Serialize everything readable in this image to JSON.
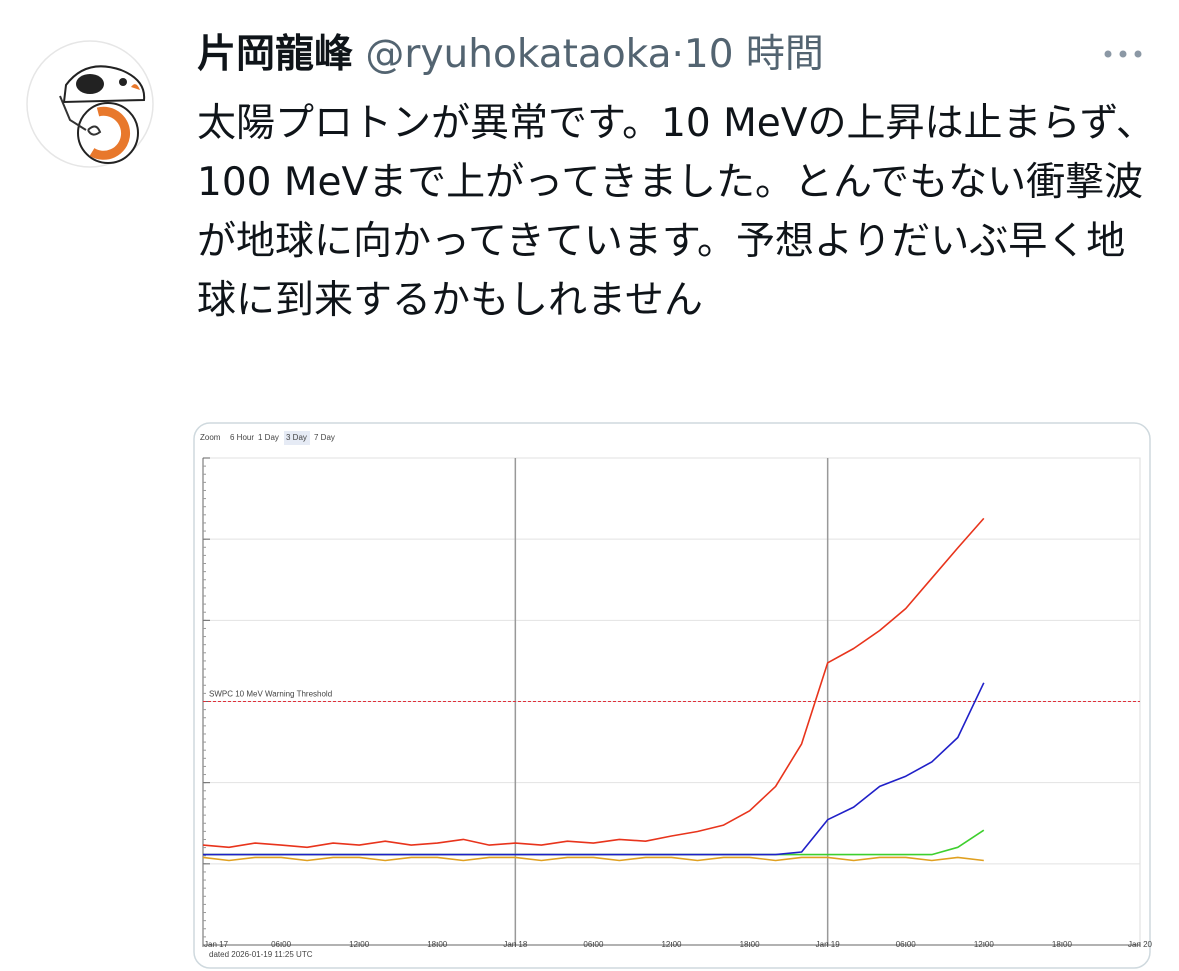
{
  "tweet": {
    "author_name": "片岡龍峰",
    "handle": "@ryuhokataoka",
    "separator": "·",
    "time": "10 時間",
    "text": "太陽プロトンが異常です。10 MeVの上昇は止まらず、100 MeVまで上がってきました。とんでもない衝撃波が地球に向かってきています。予想よりだいぶ早く地球に到来するかもしれません"
  },
  "chart_data": {
    "type": "line",
    "log_y": true,
    "zoom": {
      "label": "Zoom",
      "options": [
        "6 Hour",
        "1 Day",
        "3 Day",
        "7 Day"
      ],
      "selected": 2
    },
    "x": [
      0,
      2,
      4,
      6,
      8,
      10,
      12,
      14,
      16,
      18,
      20,
      22,
      24,
      26,
      28,
      30,
      32,
      34,
      36,
      38,
      40,
      42,
      44,
      46,
      48,
      50,
      52,
      54,
      56,
      58,
      60
    ],
    "xlim": [
      0,
      72
    ],
    "xticks": [
      {
        "value": 0,
        "label": "Jan 17"
      },
      {
        "value": 6,
        "label": "06:00"
      },
      {
        "value": 12,
        "label": "12:00"
      },
      {
        "value": 18,
        "label": "18:00"
      },
      {
        "value": 24,
        "label": "Jan 18"
      },
      {
        "value": 30,
        "label": "06:00"
      },
      {
        "value": 36,
        "label": "12:00"
      },
      {
        "value": 42,
        "label": "18:00"
      },
      {
        "value": 48,
        "label": "Jan 19"
      },
      {
        "value": 54,
        "label": "06:00"
      },
      {
        "value": 60,
        "label": "12:00"
      },
      {
        "value": 66,
        "label": "18:00"
      },
      {
        "value": 72,
        "label": "Jan 20"
      }
    ],
    "xgrid": [
      24,
      48
    ],
    "ylim": [
      0.01,
      10000
    ],
    "ygrid": [
      0.1,
      1,
      10,
      100,
      1000,
      10000
    ],
    "threshold": {
      "label": "SWPC 10 MeV Warning Threshold",
      "value": 10,
      "color": "#e0303a"
    },
    "series": [
      {
        "color": "#e8341c",
        "values": [
          0.17,
          0.16,
          0.18,
          0.17,
          0.16,
          0.18,
          0.17,
          0.19,
          0.17,
          0.18,
          0.2,
          0.17,
          0.18,
          0.17,
          0.19,
          0.18,
          0.2,
          0.19,
          0.22,
          0.25,
          0.3,
          0.45,
          0.9,
          3,
          30,
          45,
          75,
          140,
          330,
          780,
          1800
        ]
      },
      {
        "color": "#2020c8",
        "values": [
          0.13,
          0.13,
          0.13,
          0.13,
          0.13,
          0.13,
          0.13,
          0.13,
          0.13,
          0.13,
          0.13,
          0.13,
          0.13,
          0.13,
          0.13,
          0.13,
          0.13,
          0.13,
          0.13,
          0.13,
          0.13,
          0.13,
          0.13,
          0.14,
          0.35,
          0.5,
          0.9,
          1.2,
          1.8,
          3.6,
          17
        ]
      },
      {
        "color": "#3ecf2e",
        "values": [
          0.13,
          0.13,
          0.13,
          0.13,
          0.13,
          0.13,
          0.13,
          0.13,
          0.13,
          0.13,
          0.13,
          0.13,
          0.13,
          0.13,
          0.13,
          0.13,
          0.13,
          0.13,
          0.13,
          0.13,
          0.13,
          0.13,
          0.13,
          0.13,
          0.13,
          0.13,
          0.13,
          0.13,
          0.13,
          0.16,
          0.26
        ]
      },
      {
        "color": "#e0a020",
        "values": [
          0.12,
          0.11,
          0.12,
          0.12,
          0.11,
          0.12,
          0.12,
          0.11,
          0.12,
          0.12,
          0.11,
          0.12,
          0.12,
          0.11,
          0.12,
          0.12,
          0.11,
          0.12,
          0.12,
          0.11,
          0.12,
          0.12,
          0.11,
          0.12,
          0.12,
          0.11,
          0.12,
          0.12,
          0.11,
          0.12,
          0.11
        ]
      }
    ],
    "footer": "dated 2026-01-19 11:25 UTC"
  }
}
